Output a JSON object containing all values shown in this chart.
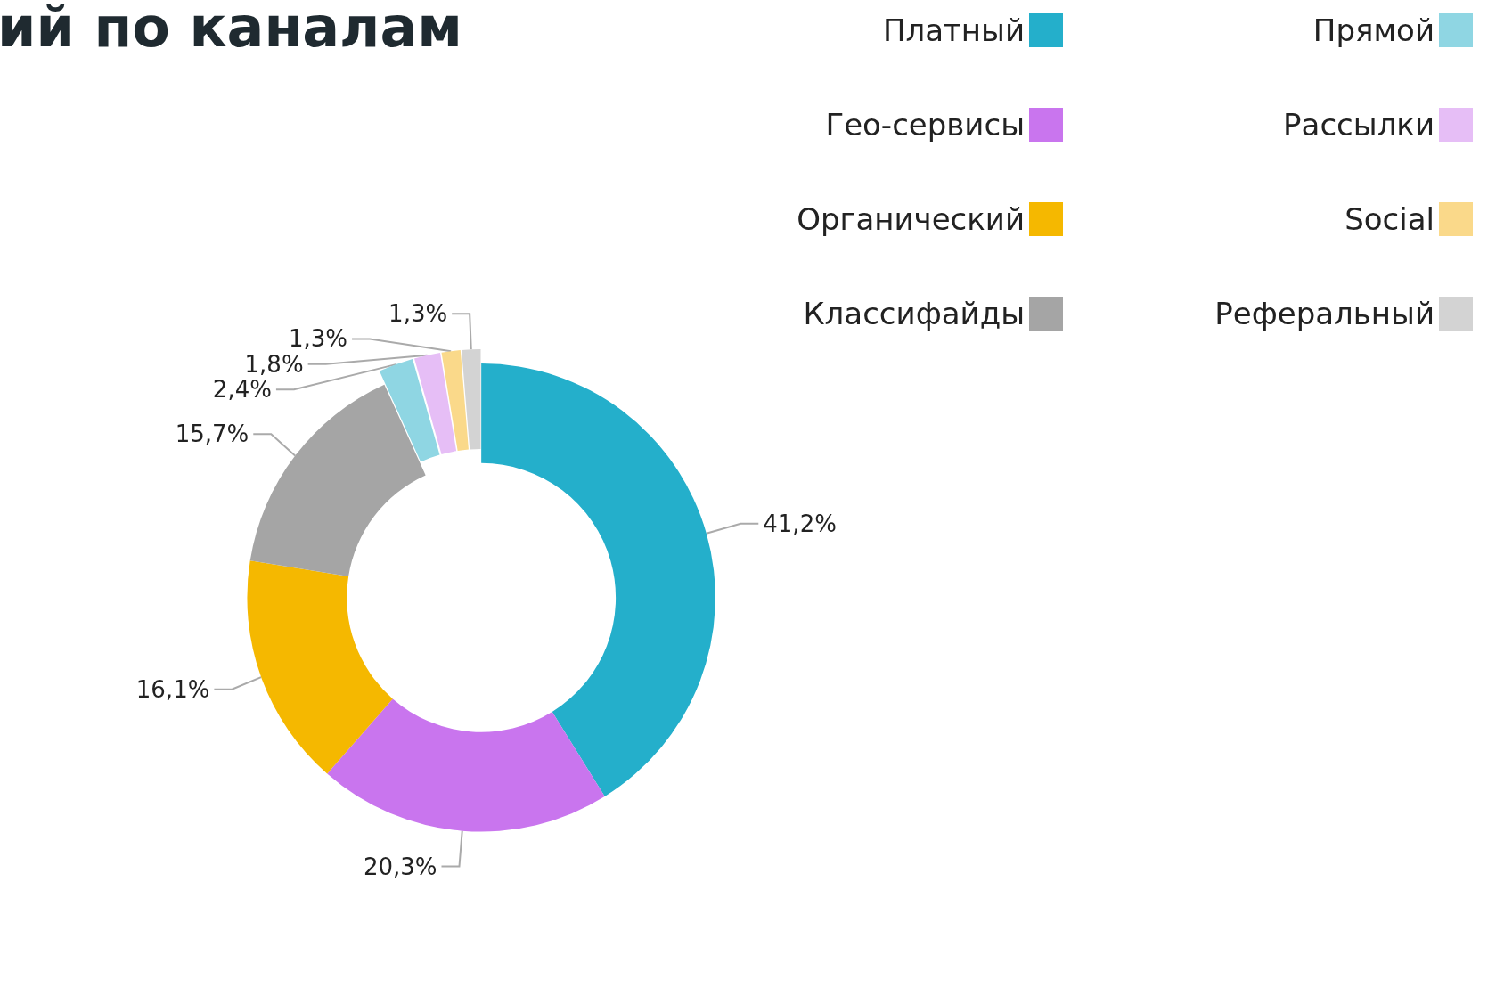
{
  "chart_data": {
    "type": "donut",
    "title": "ий по каналам",
    "categories": [
      "Платный",
      "Гео-сервисы",
      "Органический",
      "Классифайды",
      "Прямой",
      "Рассылки",
      "Social",
      "Реферальный"
    ],
    "values": [
      41.2,
      20.3,
      16.1,
      15.7,
      2.4,
      1.8,
      1.3,
      1.3
    ],
    "value_labels": [
      "41,2%",
      "20,3%",
      "16,1%",
      "15,7%",
      "2,4%",
      "1,8%",
      "1,3%",
      "1,3%"
    ],
    "colors": [
      "#24afcb",
      "#c975ee",
      "#f5b800",
      "#a5a5a5",
      "#8fd6e3",
      "#e6bef6",
      "#fad98a",
      "#d3d3d3"
    ],
    "legend": "top right"
  }
}
